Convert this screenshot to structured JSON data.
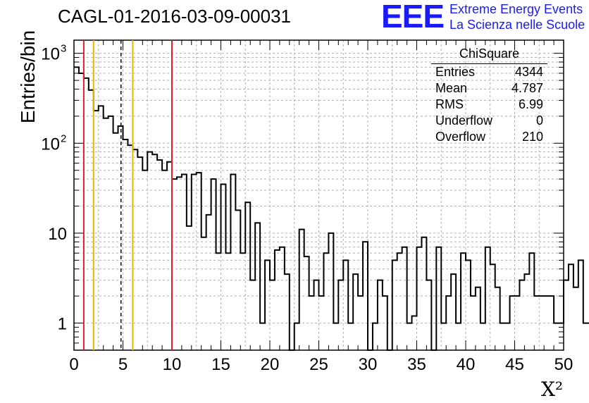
{
  "chart_data": {
    "type": "bar",
    "title": "CAGL-01-2016-03-09-00031",
    "xlabel": "X²",
    "ylabel": "Entries/bin",
    "xlim": [
      0,
      50
    ],
    "ylim": [
      0.5,
      1400
    ],
    "yscale": "log",
    "grid": true,
    "bin_width": 0.5,
    "xticks": [
      "0",
      "5",
      "10",
      "15",
      "20",
      "25",
      "30",
      "35",
      "40",
      "45",
      "50"
    ],
    "yticks": [
      {
        "value": 1,
        "label": "1"
      },
      {
        "value": 10,
        "label": "10"
      },
      {
        "value": 100,
        "label": "10",
        "exp": "2"
      },
      {
        "value": 1000,
        "label": "10",
        "exp": "3"
      }
    ],
    "values": [
      700,
      600,
      530,
      390,
      230,
      260,
      190,
      200,
      130,
      155,
      110,
      95,
      85,
      70,
      50,
      80,
      75,
      65,
      50,
      62,
      40,
      42,
      45,
      12,
      45,
      47,
      9,
      16,
      40,
      6,
      35,
      6,
      45,
      18,
      6,
      22,
      3,
      13,
      1,
      5,
      3,
      6.5,
      7,
      3.5,
      0.5,
      1,
      11,
      5.5,
      2,
      3,
      2,
      6,
      10,
      1,
      3,
      5,
      1,
      3.5,
      2,
      8,
      0.5,
      1,
      3,
      2,
      0.5,
      5,
      6,
      7,
      1,
      1.2,
      7,
      9,
      3,
      0.5,
      7,
      1,
      2,
      3.5,
      1,
      6,
      5,
      2,
      2.5,
      1,
      7,
      4.5,
      2.5,
      1,
      1,
      2,
      2,
      3,
      3.5,
      6,
      2,
      2,
      2,
      2,
      1,
      1,
      3,
      4.5,
      2.5,
      5,
      1,
      1,
      2,
      2,
      1,
      1,
      6,
      2,
      4,
      1,
      1,
      4.5,
      3,
      0.5,
      1,
      1,
      7,
      5,
      2,
      1,
      1,
      4,
      2.5,
      1,
      0.5,
      1,
      1,
      3,
      1,
      2,
      1,
      1,
      1,
      1,
      6,
      1,
      1,
      1,
      1,
      1,
      1,
      1,
      0.5,
      1,
      3,
      3
    ],
    "vlines": [
      {
        "x": 1.0,
        "color": "#dd2222",
        "style": "solid"
      },
      {
        "x": 2.0,
        "color": "#e8b800",
        "style": "solid"
      },
      {
        "x": 4.8,
        "color": "#000000",
        "style": "dashed"
      },
      {
        "x": 6.0,
        "color": "#e8b800",
        "style": "solid"
      },
      {
        "x": 10.0,
        "color": "#dd2222",
        "style": "solid"
      }
    ],
    "stats": {
      "title": "ChiSquare",
      "rows": [
        {
          "label": "Entries",
          "value": "4344"
        },
        {
          "label": "Mean",
          "value": "4.787"
        },
        {
          "label": "RMS",
          "value": "6.99"
        },
        {
          "label": "Underflow",
          "value": "0"
        },
        {
          "label": "Overflow",
          "value": "210"
        }
      ]
    }
  },
  "logo": {
    "mark": "EEE",
    "line1": "Extreme Energy Events",
    "line2": "La Scienza nelle Scuole",
    "color": "#1a1aff"
  }
}
